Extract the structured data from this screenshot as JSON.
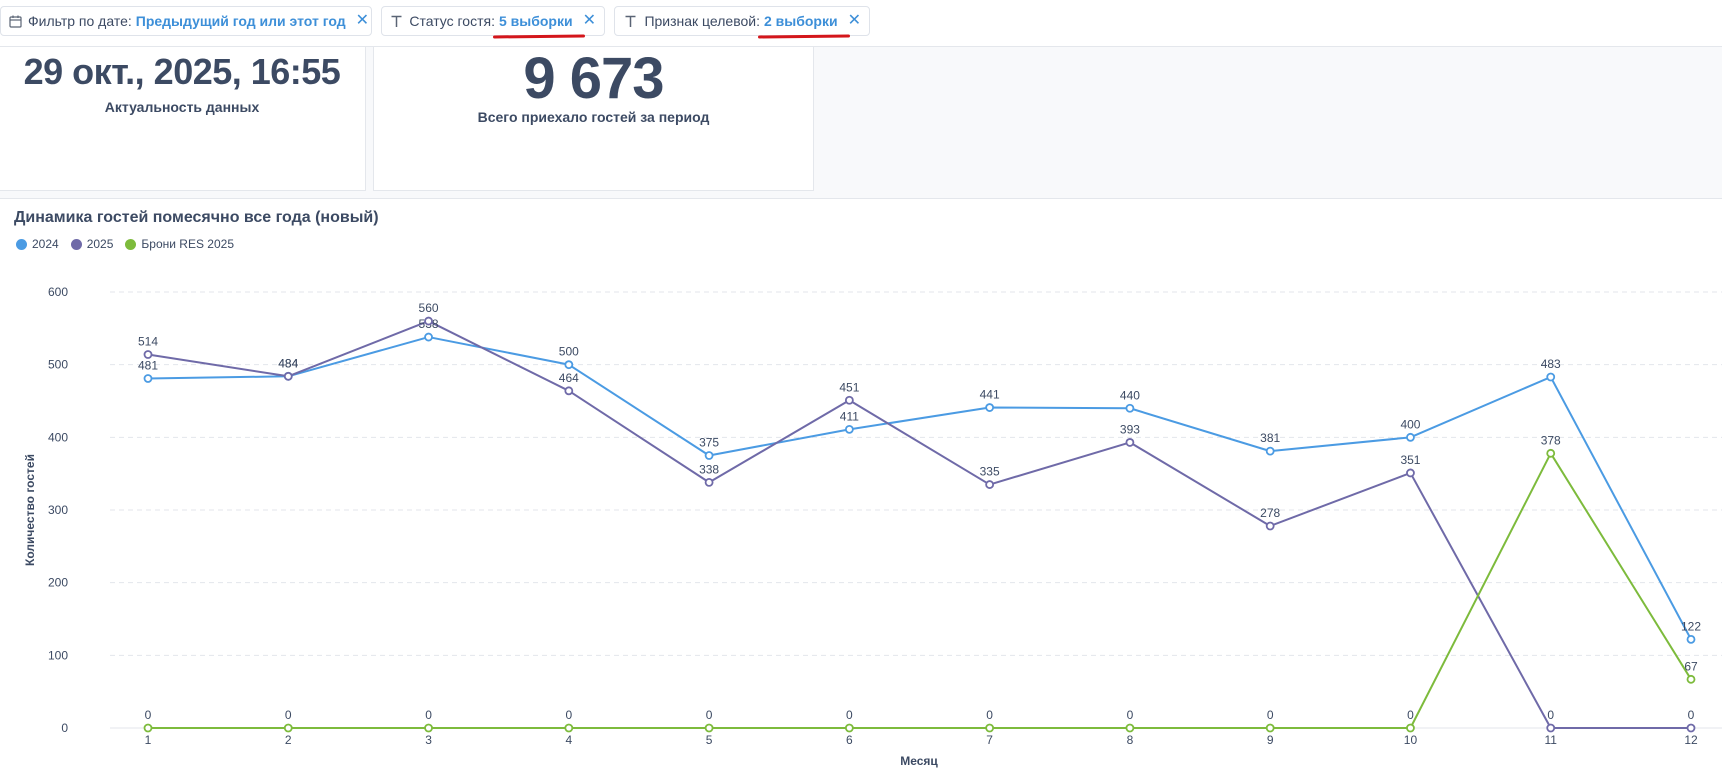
{
  "filters": [
    {
      "label": "Фильтр по дате:",
      "value": "Предыдущий год или этот год",
      "icon": "calendar-icon"
    },
    {
      "label": "Статус гостя:",
      "value": "5 выборки",
      "icon": "text-type-icon"
    },
    {
      "label": "Признак целевой:",
      "value": "2 выборки",
      "icon": "text-type-icon"
    }
  ],
  "kpi": {
    "date_value": "29 окт., 2025, 16:55",
    "date_caption": "Актуальность данных",
    "guests_value": "9 673",
    "guests_caption": "Всего приехало гостей за период"
  },
  "chart": {
    "title": "Динамика гостей помесячно все года (новый)"
  },
  "colors": {
    "s2024": "#4b9be3",
    "s2025": "#6f6aa8",
    "res2025": "#7dbb3c",
    "accent": "#3d8fd8",
    "annotation": "#d4161b"
  },
  "chart_data": {
    "type": "line",
    "title": "Динамика гостей помесячно все года (новый)",
    "xlabel": "Месяц",
    "ylabel": "Количество гостей",
    "categories": [
      "1",
      "2",
      "3",
      "4",
      "5",
      "6",
      "7",
      "8",
      "9",
      "10",
      "11",
      "12"
    ],
    "ylim": [
      0,
      600
    ],
    "yticks": [
      0,
      100,
      200,
      300,
      400,
      500,
      600
    ],
    "grid": true,
    "legend_position": "top-left",
    "series": [
      {
        "name": "2024",
        "color": "#4b9be3",
        "values": [
          481,
          484,
          538,
          500,
          375,
          411,
          441,
          440,
          381,
          400,
          483,
          122
        ]
      },
      {
        "name": "2025",
        "color": "#6f6aa8",
        "values": [
          514,
          484,
          560,
          464,
          338,
          451,
          335,
          393,
          278,
          351,
          0,
          0
        ]
      },
      {
        "name": "Брони RES 2025",
        "color": "#7dbb3c",
        "values": [
          0,
          0,
          0,
          0,
          0,
          0,
          0,
          0,
          0,
          0,
          378,
          67
        ]
      }
    ]
  }
}
